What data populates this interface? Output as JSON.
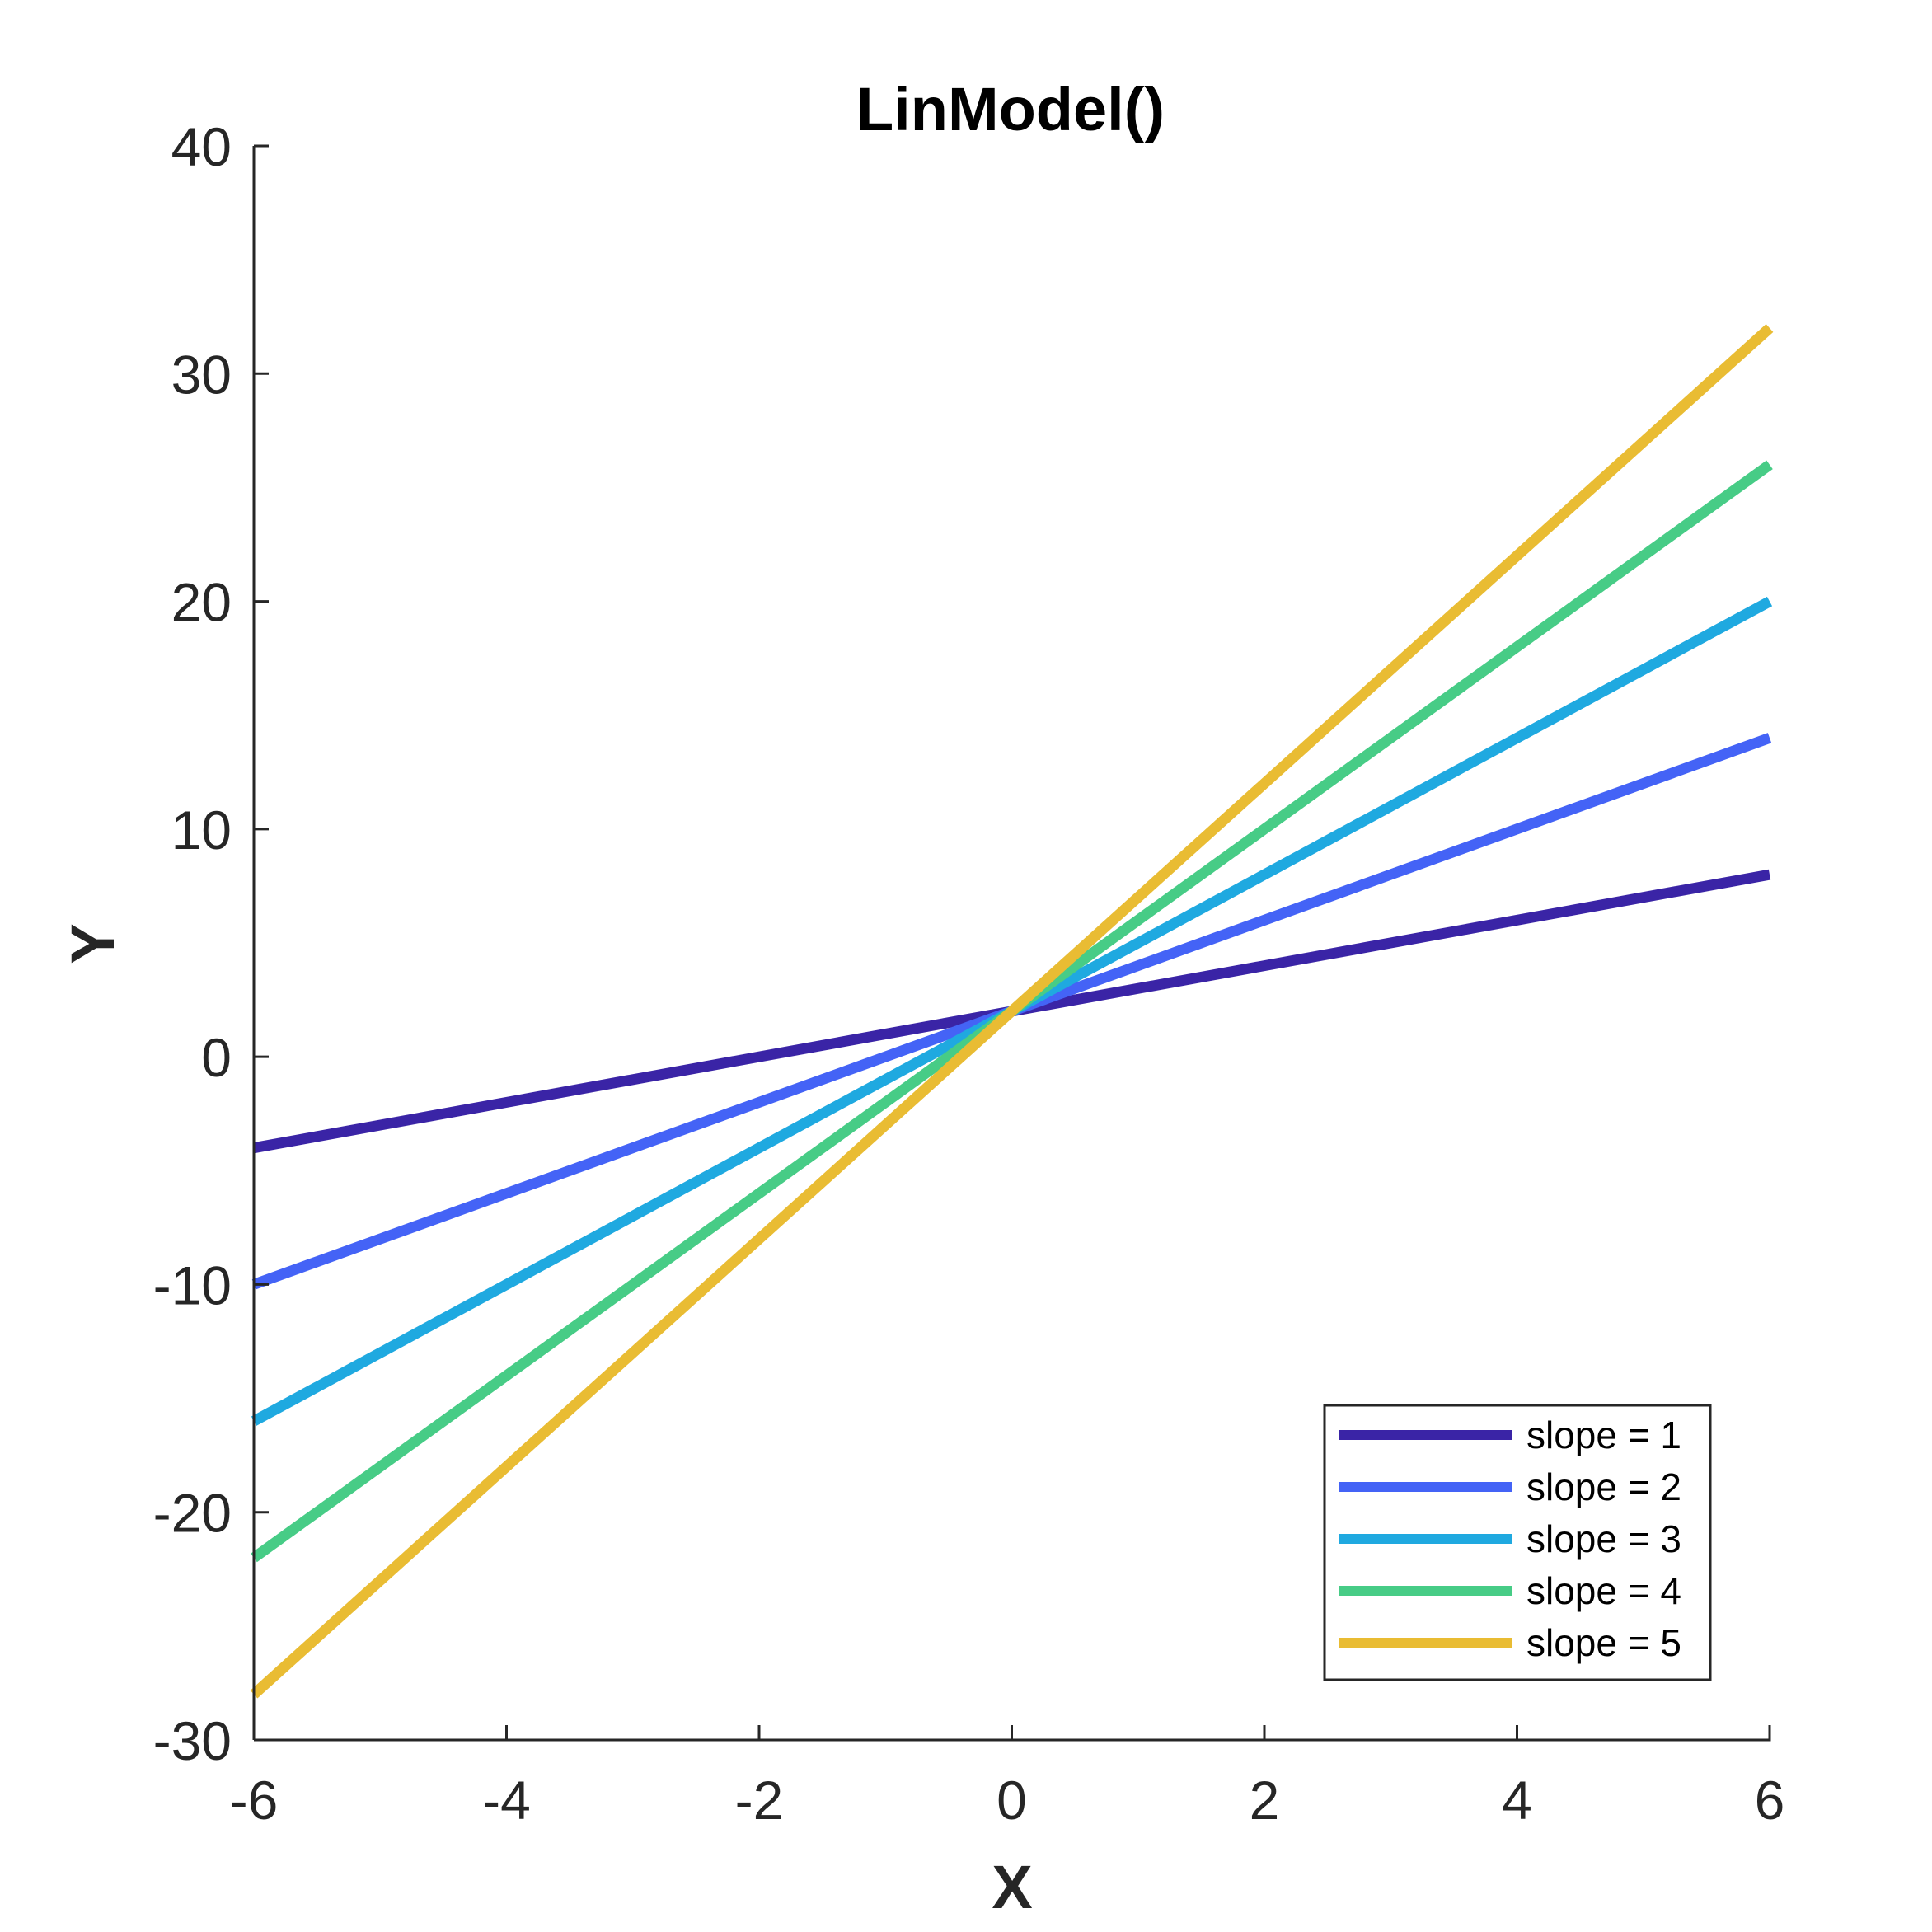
{
  "chart_data": {
    "type": "line",
    "title": "LinModel()",
    "xlabel": "X",
    "ylabel": "Y",
    "xlim": [
      -6,
      6
    ],
    "ylim": [
      -30,
      40
    ],
    "xticks": [
      "-6",
      "-4",
      "-2",
      "0",
      "2",
      "4",
      "6"
    ],
    "yticks": [
      "-30",
      "-20",
      "-10",
      "0",
      "10",
      "20",
      "30",
      "40"
    ],
    "grid": false,
    "legend_position": "bottom-right",
    "x": [
      -6,
      6
    ],
    "series": [
      {
        "name": "slope = 1",
        "values": [
          -4,
          8
        ],
        "color": "#3a24a6"
      },
      {
        "name": "slope = 2",
        "values": [
          -10,
          14
        ],
        "color": "#4463f6"
      },
      {
        "name": "slope = 3",
        "values": [
          -16,
          20
        ],
        "color": "#1fa9e0"
      },
      {
        "name": "slope = 4",
        "values": [
          -22,
          26
        ],
        "color": "#47cc86"
      },
      {
        "name": "slope = 5",
        "values": [
          -28,
          32
        ],
        "color": "#e9bc33"
      }
    ]
  }
}
